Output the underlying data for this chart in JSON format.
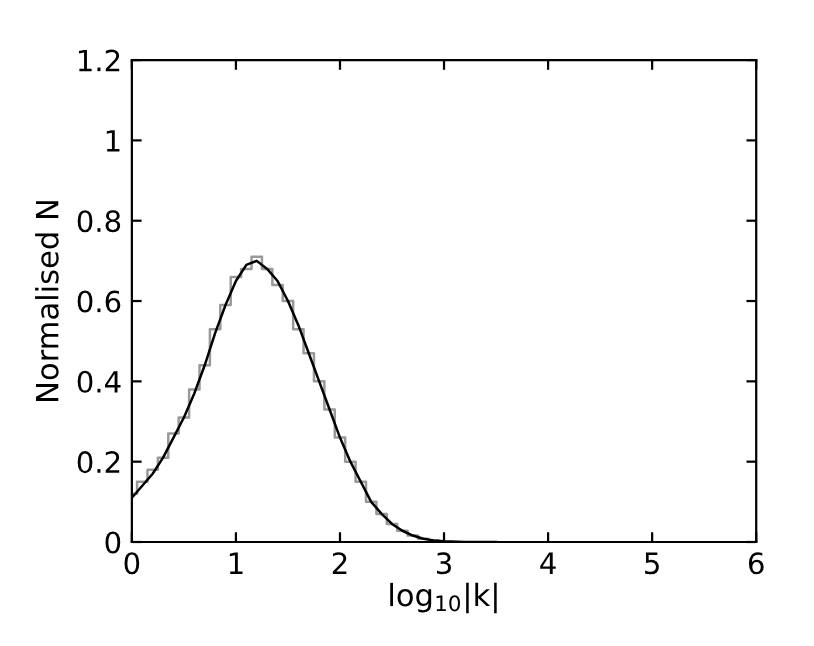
{
  "chart_data": {
    "type": "line",
    "xlabel": "log$_{10}$|k|",
    "ylabel": "Normalised N",
    "xlim": [
      0,
      6
    ],
    "ylim": [
      0,
      1.2
    ],
    "xticks": [
      0,
      1,
      2,
      3,
      4,
      5,
      6
    ],
    "yticks": [
      0,
      0.2,
      0.4,
      0.6,
      0.8,
      1,
      1.2
    ],
    "grid": false,
    "series": [
      {
        "type": "step",
        "color": "#999999",
        "x": [
          0,
          0.1,
          0.2,
          0.3,
          0.4,
          0.5,
          0.6,
          0.7,
          0.8,
          0.9,
          1.0,
          1.1,
          1.2,
          1.3,
          1.4,
          1.5,
          1.6,
          1.7,
          1.8,
          1.9,
          2.0,
          2.1,
          2.2,
          2.3,
          2.4,
          2.5,
          2.6,
          2.7,
          2.8,
          2.9,
          3.0
        ],
        "values": [
          0.12,
          0.15,
          0.18,
          0.21,
          0.27,
          0.31,
          0.38,
          0.44,
          0.53,
          0.59,
          0.66,
          0.68,
          0.71,
          0.68,
          0.64,
          0.6,
          0.53,
          0.47,
          0.4,
          0.33,
          0.26,
          0.2,
          0.15,
          0.1,
          0.07,
          0.045,
          0.028,
          0.016,
          0.008,
          0.004,
          0.002
        ]
      },
      {
        "color": "#000000",
        "x": [
          0,
          0.1,
          0.2,
          0.3,
          0.4,
          0.5,
          0.6,
          0.7,
          0.8,
          0.9,
          1.0,
          1.1,
          1.2,
          1.3,
          1.4,
          1.5,
          1.6,
          1.7,
          1.8,
          1.9,
          2.0,
          2.1,
          2.2,
          2.3,
          2.4,
          2.5,
          2.6,
          2.7,
          2.8,
          2.9,
          3.0,
          3.2,
          3.5
        ],
        "values": [
          0.11,
          0.14,
          0.17,
          0.21,
          0.26,
          0.31,
          0.37,
          0.44,
          0.52,
          0.59,
          0.65,
          0.69,
          0.7,
          0.68,
          0.65,
          0.6,
          0.54,
          0.47,
          0.4,
          0.33,
          0.26,
          0.2,
          0.15,
          0.1,
          0.07,
          0.045,
          0.028,
          0.016,
          0.008,
          0.004,
          0.002,
          0.0,
          0.0
        ]
      }
    ]
  }
}
